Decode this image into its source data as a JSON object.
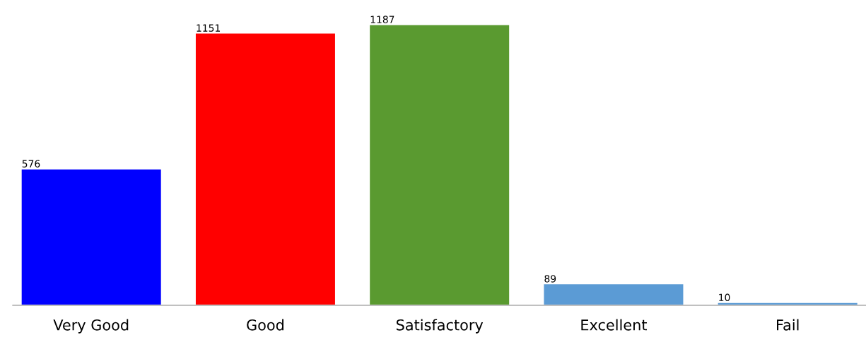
{
  "chart_data": {
    "type": "bar",
    "categories": [
      "Very Good",
      "Good",
      "Satisfactory",
      "Excellent",
      "Fail"
    ],
    "values": [
      576,
      1151,
      1187,
      89,
      10
    ],
    "colors": [
      "#0000ff",
      "#ff0000",
      "#5a9a30",
      "#5b9bd5",
      "#5b9bd5"
    ],
    "data_labels": true,
    "grid": false,
    "legend": false,
    "tick_labels": "x"
  }
}
